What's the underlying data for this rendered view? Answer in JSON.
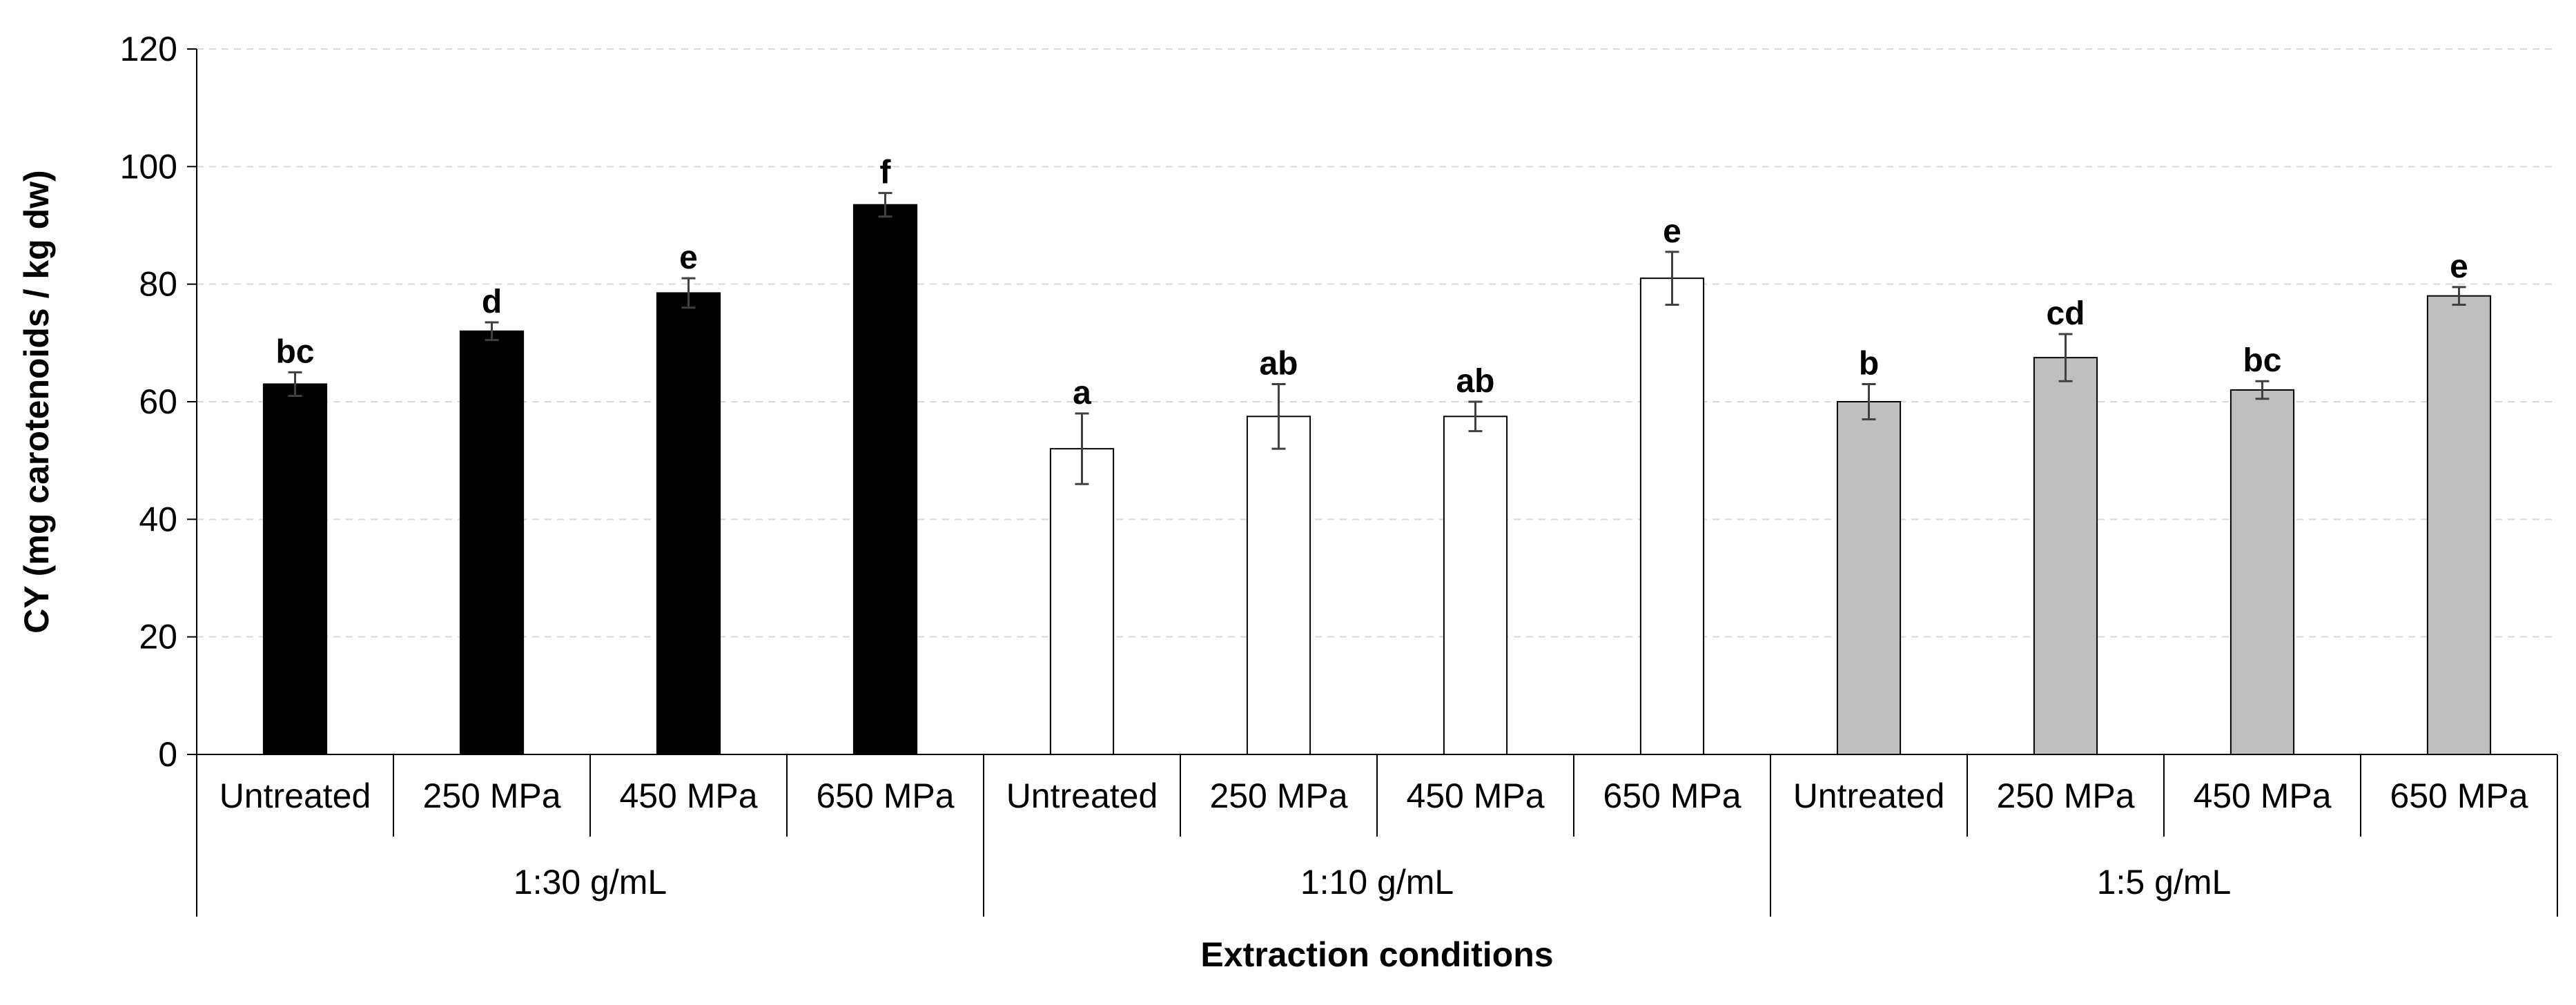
{
  "chart_data": {
    "type": "bar",
    "title": "",
    "ylabel": "CY (mg carotenoids / kg dw)",
    "xlabel": "Extraction conditions",
    "ylim": [
      0,
      120
    ],
    "yticks": [
      0,
      20,
      40,
      60,
      80,
      100,
      120
    ],
    "ytick_labels": [
      "0",
      "20",
      "40",
      "60",
      "80",
      "100",
      "120"
    ],
    "grid": true,
    "groups": [
      {
        "label": "1:30 g/mL",
        "fill": "#000000",
        "bars": [
          {
            "category": "Untreated",
            "value": 63,
            "error": 2,
            "letter": "bc"
          },
          {
            "category": "250 MPa",
            "value": 72,
            "error": 1.5,
            "letter": "d"
          },
          {
            "category": "450 MPa",
            "value": 78.5,
            "error": 2.5,
            "letter": "e"
          },
          {
            "category": "650 MPa",
            "value": 93.5,
            "error": 2,
            "letter": "f"
          }
        ]
      },
      {
        "label": "1:10 g/mL",
        "fill": "#ffffff",
        "bars": [
          {
            "category": "Untreated",
            "value": 52,
            "error": 6,
            "letter": "a"
          },
          {
            "category": "250 MPa",
            "value": 57.5,
            "error": 5.5,
            "letter": "ab"
          },
          {
            "category": "450 MPa",
            "value": 57.5,
            "error": 2.5,
            "letter": "ab"
          },
          {
            "category": "650 MPa",
            "value": 81,
            "error": 4.5,
            "letter": "e"
          }
        ]
      },
      {
        "label": "1:5 g/mL",
        "fill": "#bfbfbf",
        "bars": [
          {
            "category": "Untreated",
            "value": 60,
            "error": 3,
            "letter": "b"
          },
          {
            "category": "250 MPa",
            "value": 67.5,
            "error": 4,
            "letter": "cd"
          },
          {
            "category": "450 MPa",
            "value": 62,
            "error": 1.5,
            "letter": "bc"
          },
          {
            "category": "650 MPa",
            "value": 78,
            "error": 1.5,
            "letter": "e"
          }
        ]
      }
    ]
  }
}
